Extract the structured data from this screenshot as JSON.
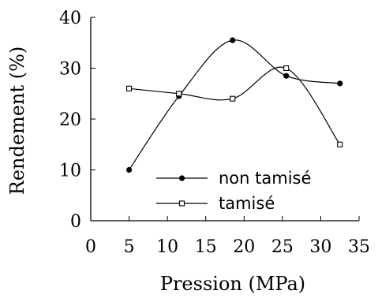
{
  "chart_data": {
    "type": "line",
    "xlabel": "Pression (MPa)",
    "ylabel": "Rendement (%)",
    "xlim": [
      0,
      35
    ],
    "ylim": [
      0,
      40
    ],
    "xticks": [
      0,
      5,
      10,
      15,
      20,
      25,
      30,
      35
    ],
    "yticks": [
      0,
      10,
      20,
      30,
      40
    ],
    "grid": false,
    "legend_position": "bottom-right",
    "smooth": true,
    "series": [
      {
        "name": "non tamisé",
        "marker": "filled-circle",
        "x": [
          5,
          11.5,
          18.5,
          25.5,
          32.5
        ],
        "y": [
          10,
          24.5,
          35.5,
          28.5,
          27
        ]
      },
      {
        "name": "tamisé",
        "marker": "open-square",
        "x": [
          5,
          11.5,
          18.5,
          25.5,
          32.5
        ],
        "y": [
          26,
          25,
          24,
          30,
          15
        ]
      }
    ]
  }
}
